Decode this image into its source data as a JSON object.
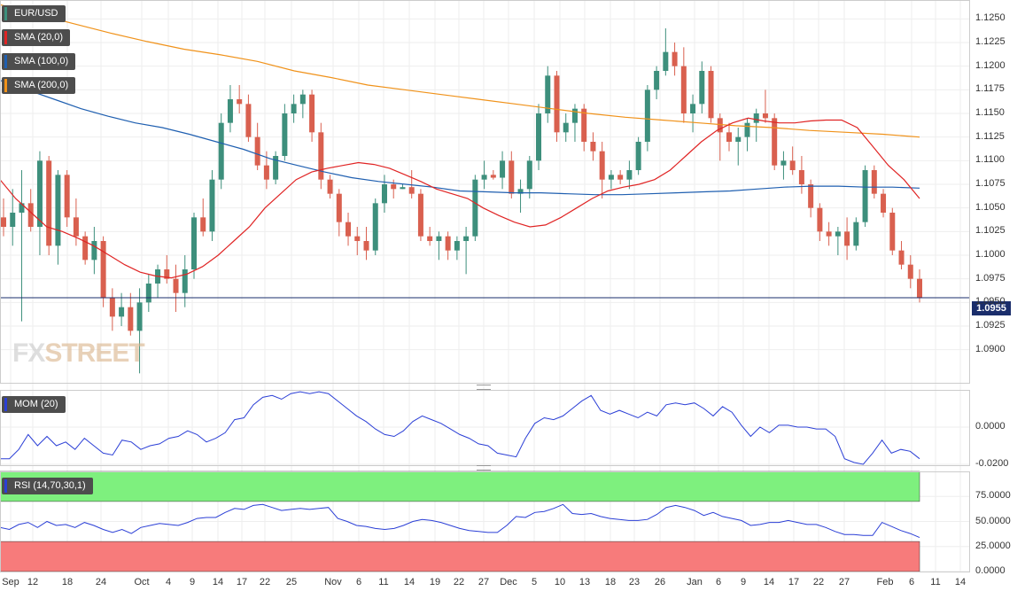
{
  "instrument": "EUR/USD",
  "legend": {
    "symbol": "EUR/USD",
    "sma20": "SMA (20,0)",
    "sma100": "SMA (100,0)",
    "sma200": "SMA (200,0)",
    "mom": "MOM (20)",
    "rsi": "RSI (14,70,30,1)"
  },
  "colors": {
    "up": "#3d8f7c",
    "down": "#d9604f",
    "sma20": "#e02424",
    "sma100": "#1f5fb0",
    "sma200": "#f0921a",
    "mom": "#2b3fd6",
    "rsi": "#2b3fd6",
    "overbought": "#7ef07e",
    "oversold": "#f77b7b",
    "current_line": "#1a2d6b"
  },
  "watermark": {
    "a": "FX",
    "b": "STREET"
  },
  "current_price": "1.0955",
  "chart_data": [
    {
      "type": "candlestick",
      "title": "EUR/USD",
      "ylim": [
        1.0865,
        1.127
      ],
      "yticks": [
        "1.0900",
        "1.0925",
        "1.0950",
        "1.0975",
        "1.1000",
        "1.1025",
        "1.1050",
        "1.1075",
        "1.1100",
        "1.1125",
        "1.1150",
        "1.1175",
        "1.1200",
        "1.1225",
        "1.1250"
      ],
      "xticks": [
        "Sep",
        "12",
        "18",
        "24",
        "Oct",
        "4",
        "9",
        "14",
        "17",
        "22",
        "25",
        "Nov",
        "6",
        "11",
        "14",
        "19",
        "22",
        "27",
        "Dec",
        "5",
        "10",
        "13",
        "18",
        "23",
        "26",
        "Jan",
        "6",
        "9",
        "14",
        "17",
        "22",
        "27",
        "Feb",
        "6",
        "11",
        "14"
      ],
      "current": 1.0955,
      "candles": [
        [
          1.104,
          1.106,
          1.102,
          1.103
        ],
        [
          1.103,
          1.107,
          1.101,
          1.1045
        ],
        [
          1.1045,
          1.109,
          1.093,
          1.1055
        ],
        [
          1.1055,
          1.107,
          1.1025,
          1.103
        ],
        [
          1.103,
          1.111,
          1.1,
          1.11
        ],
        [
          1.11,
          1.1105,
          1.1,
          1.101
        ],
        [
          1.101,
          1.109,
          1.099,
          1.1085
        ],
        [
          1.1085,
          1.109,
          1.103,
          1.104
        ],
        [
          1.104,
          1.106,
          1.101,
          1.102
        ],
        [
          1.102,
          1.1025,
          1.099,
          1.0995
        ],
        [
          1.0995,
          1.103,
          1.098,
          1.1015
        ],
        [
          1.1015,
          1.102,
          1.0945,
          1.0955
        ],
        [
          1.0955,
          1.0965,
          1.092,
          1.0935
        ],
        [
          1.0935,
          1.096,
          1.0925,
          1.0945
        ],
        [
          1.0945,
          1.096,
          1.0915,
          1.092
        ],
        [
          1.092,
          1.0965,
          1.0875,
          1.095
        ],
        [
          1.095,
          1.098,
          1.094,
          1.097
        ],
        [
          1.097,
          1.099,
          1.0955,
          1.0985
        ],
        [
          1.0985,
          1.1,
          1.097,
          1.0975
        ],
        [
          1.0975,
          1.099,
          1.094,
          1.096
        ],
        [
          1.096,
          1.1,
          1.0945,
          1.0985
        ],
        [
          1.0985,
          1.1045,
          1.0975,
          1.104
        ],
        [
          1.104,
          1.106,
          1.102,
          1.1025
        ],
        [
          1.1025,
          1.109,
          1.1015,
          1.108
        ],
        [
          1.108,
          1.115,
          1.107,
          1.114
        ],
        [
          1.114,
          1.118,
          1.113,
          1.1165
        ],
        [
          1.1165,
          1.118,
          1.115,
          1.116
        ],
        [
          1.116,
          1.117,
          1.112,
          1.1125
        ],
        [
          1.1125,
          1.114,
          1.109,
          1.1095
        ],
        [
          1.1095,
          1.111,
          1.107,
          1.108
        ],
        [
          1.108,
          1.111,
          1.1075,
          1.1105
        ],
        [
          1.1105,
          1.116,
          1.11,
          1.115
        ],
        [
          1.115,
          1.117,
          1.114,
          1.116
        ],
        [
          1.116,
          1.1175,
          1.1145,
          1.117
        ],
        [
          1.117,
          1.1175,
          1.112,
          1.113
        ],
        [
          1.113,
          1.114,
          1.107,
          1.108
        ],
        [
          1.108,
          1.1085,
          1.106,
          1.1065
        ],
        [
          1.1065,
          1.107,
          1.102,
          1.1035
        ],
        [
          1.1035,
          1.1045,
          1.101,
          1.102
        ],
        [
          1.102,
          1.103,
          1.1,
          1.1015
        ],
        [
          1.1015,
          1.103,
          1.0995,
          1.1005
        ],
        [
          1.1005,
          1.106,
          1.1,
          1.1055
        ],
        [
          1.1055,
          1.1085,
          1.1045,
          1.1075
        ],
        [
          1.1075,
          1.108,
          1.106,
          1.107
        ],
        [
          1.107,
          1.1075,
          1.107,
          1.1072
        ],
        [
          1.1072,
          1.109,
          1.106,
          1.1065
        ],
        [
          1.1065,
          1.107,
          1.1015,
          1.102
        ],
        [
          1.102,
          1.103,
          1.101,
          1.1015
        ],
        [
          1.1015,
          1.1025,
          1.0995,
          1.102
        ],
        [
          1.102,
          1.1025,
          1.0995,
          1.1005
        ],
        [
          1.1005,
          1.102,
          1.0995,
          1.1015
        ],
        [
          1.1015,
          1.103,
          1.098,
          1.102
        ],
        [
          1.102,
          1.1085,
          1.1015,
          1.108
        ],
        [
          1.108,
          1.11,
          1.107,
          1.1085
        ],
        [
          1.1085,
          1.109,
          1.108,
          1.1082
        ],
        [
          1.1082,
          1.111,
          1.107,
          1.11
        ],
        [
          1.11,
          1.111,
          1.106,
          1.1065
        ],
        [
          1.1065,
          1.108,
          1.1045,
          1.107
        ],
        [
          1.107,
          1.1105,
          1.106,
          1.11
        ],
        [
          1.11,
          1.116,
          1.109,
          1.115
        ],
        [
          1.115,
          1.12,
          1.114,
          1.119
        ],
        [
          1.119,
          1.1195,
          1.112,
          1.113
        ],
        [
          1.113,
          1.115,
          1.112,
          1.114
        ],
        [
          1.114,
          1.116,
          1.112,
          1.1155
        ],
        [
          1.1155,
          1.116,
          1.111,
          1.112
        ],
        [
          1.112,
          1.113,
          1.11,
          1.111
        ],
        [
          1.111,
          1.112,
          1.106,
          1.108
        ],
        [
          1.108,
          1.109,
          1.107,
          1.1085
        ],
        [
          1.1085,
          1.109,
          1.1075,
          1.108
        ],
        [
          1.108,
          1.11,
          1.107,
          1.109
        ],
        [
          1.109,
          1.1125,
          1.1085,
          1.112
        ],
        [
          1.112,
          1.118,
          1.111,
          1.1175
        ],
        [
          1.1175,
          1.12,
          1.1165,
          1.1195
        ],
        [
          1.1195,
          1.124,
          1.119,
          1.1215
        ],
        [
          1.1215,
          1.1225,
          1.119,
          1.12
        ],
        [
          1.12,
          1.122,
          1.114,
          1.115
        ],
        [
          1.115,
          1.117,
          1.113,
          1.116
        ],
        [
          1.116,
          1.1205,
          1.115,
          1.1195
        ],
        [
          1.1195,
          1.12,
          1.114,
          1.1145
        ],
        [
          1.1145,
          1.115,
          1.11,
          1.113
        ],
        [
          1.113,
          1.114,
          1.111,
          1.112
        ],
        [
          1.112,
          1.1135,
          1.1095,
          1.1125
        ],
        [
          1.1125,
          1.1145,
          1.111,
          1.114
        ],
        [
          1.114,
          1.1155,
          1.112,
          1.115
        ],
        [
          1.115,
          1.1175,
          1.114,
          1.1145
        ],
        [
          1.1145,
          1.115,
          1.109,
          1.1095
        ],
        [
          1.1095,
          1.111,
          1.108,
          1.11
        ],
        [
          1.11,
          1.1115,
          1.1085,
          1.109
        ],
        [
          1.109,
          1.1105,
          1.1065,
          1.1075
        ],
        [
          1.1075,
          1.108,
          1.104,
          1.105
        ],
        [
          1.105,
          1.1055,
          1.1015,
          1.1025
        ],
        [
          1.1025,
          1.1035,
          1.101,
          1.102
        ],
        [
          1.102,
          1.103,
          1.1,
          1.1025
        ],
        [
          1.1025,
          1.104,
          1.0995,
          1.101
        ],
        [
          1.101,
          1.104,
          1.1005,
          1.1035
        ],
        [
          1.1035,
          1.1095,
          1.103,
          1.109
        ],
        [
          1.109,
          1.1095,
          1.106,
          1.1065
        ],
        [
          1.1065,
          1.107,
          1.104,
          1.1045
        ],
        [
          1.1045,
          1.105,
          1.1,
          1.1005
        ],
        [
          1.1005,
          1.1015,
          1.0985,
          1.099
        ],
        [
          1.099,
          1.1,
          1.0965,
          1.0975
        ],
        [
          1.0975,
          1.0985,
          1.095,
          1.0955
        ]
      ],
      "sma20": [
        1.108,
        1.106,
        1.1045,
        1.103,
        1.1025,
        1.1018,
        1.101,
        1.1,
        1.099,
        1.0982,
        1.0978,
        1.0976,
        1.098,
        1.0988,
        1.1,
        1.1015,
        1.103,
        1.105,
        1.1065,
        1.108,
        1.1088,
        1.1092,
        1.1095,
        1.1098,
        1.1096,
        1.1092,
        1.1085,
        1.1078,
        1.107,
        1.1065,
        1.106,
        1.105,
        1.1042,
        1.1035,
        1.103,
        1.1032,
        1.104,
        1.105,
        1.106,
        1.1068,
        1.1072,
        1.1075,
        1.108,
        1.109,
        1.1105,
        1.112,
        1.1132,
        1.114,
        1.1145,
        1.1142,
        1.114,
        1.114,
        1.1142,
        1.1143,
        1.1143,
        1.1135,
        1.1115,
        1.1095,
        1.108,
        1.106
      ],
      "sma100": [
        1.1185,
        1.1175,
        1.1165,
        1.1155,
        1.1147,
        1.114,
        1.1135,
        1.1128,
        1.112,
        1.1112,
        1.1102,
        1.1095,
        1.1088,
        1.1082,
        1.1078,
        1.1075,
        1.1072,
        1.1068,
        1.1067,
        1.1066,
        1.1066,
        1.1065,
        1.1064,
        1.1064,
        1.1065,
        1.1066,
        1.1067,
        1.1068,
        1.107,
        1.1072,
        1.1073,
        1.1073,
        1.1072,
        1.1072,
        1.1071
      ],
      "sma200": [
        1.1265,
        1.1255,
        1.1245,
        1.1235,
        1.1226,
        1.1218,
        1.1212,
        1.1205,
        1.1195,
        1.1188,
        1.118,
        1.1175,
        1.117,
        1.1165,
        1.116,
        1.1155,
        1.115,
        1.1146,
        1.1143,
        1.114,
        1.1137,
        1.1135,
        1.1132,
        1.113,
        1.1128,
        1.1125
      ]
    },
    {
      "type": "line",
      "title": "MOM (20)",
      "ylim": [
        -0.0205,
        0.02
      ],
      "yticks": [
        "0.0000",
        "-0.0200"
      ],
      "series": [
        {
          "name": "MOM (20)",
          "values": [
            -0.017,
            -0.017,
            -0.012,
            -0.004,
            -0.01,
            -0.005,
            -0.01,
            -0.008,
            -0.012,
            -0.006,
            -0.01,
            -0.014,
            -0.015,
            -0.007,
            -0.008,
            -0.012,
            -0.01,
            -0.009,
            -0.006,
            -0.005,
            -0.002,
            -0.004,
            -0.008,
            -0.006,
            -0.003,
            0.004,
            0.005,
            0.012,
            0.016,
            0.017,
            0.015,
            0.018,
            0.019,
            0.018,
            0.019,
            0.018,
            0.014,
            0.01,
            0.006,
            0.003,
            -0.001,
            -0.004,
            -0.005,
            -0.002,
            0.003,
            0.006,
            0.004,
            0.002,
            -0.001,
            -0.004,
            -0.006,
            -0.009,
            -0.01,
            -0.014,
            -0.015,
            -0.016,
            -0.006,
            0.002,
            0.005,
            0.004,
            0.006,
            0.01,
            0.014,
            0.017,
            0.009,
            0.007,
            0.009,
            0.007,
            0.005,
            0.008,
            0.006,
            0.012,
            0.013,
            0.012,
            0.013,
            0.01,
            0.006,
            0.011,
            0.008,
            0.001,
            -0.005,
            0.0,
            -0.003,
            0.001,
            0.001,
            0.0,
            0.0,
            -0.001,
            -0.001,
            -0.005,
            -0.017,
            -0.019,
            -0.02,
            -0.014,
            -0.007,
            -0.014,
            -0.012,
            -0.013,
            -0.017
          ]
        }
      ]
    },
    {
      "type": "line",
      "title": "RSI (14,70,30,1)",
      "ylim": [
        0,
        100
      ],
      "yticks": [
        "75.0000",
        "50.0000",
        "25.0000",
        "0.0000"
      ],
      "overbought": 70,
      "oversold": 30,
      "series": [
        {
          "name": "RSI (14,70,30,1)",
          "values": [
            44,
            42,
            47,
            49,
            44,
            50,
            46,
            47,
            44,
            49,
            46,
            42,
            39,
            42,
            38,
            44,
            46,
            48,
            47,
            46,
            49,
            53,
            54,
            54,
            59,
            63,
            62,
            66,
            67,
            64,
            61,
            62,
            63,
            62,
            63,
            64,
            53,
            50,
            46,
            45,
            43,
            42,
            43,
            46,
            50,
            52,
            51,
            49,
            46,
            43,
            41,
            40,
            39,
            39,
            46,
            55,
            54,
            59,
            60,
            63,
            67,
            58,
            57,
            58,
            55,
            53,
            52,
            51,
            51,
            52,
            57,
            64,
            66,
            64,
            61,
            56,
            59,
            55,
            53,
            51,
            46,
            47,
            49,
            49,
            51,
            49,
            47,
            47,
            44,
            40,
            37,
            37,
            36,
            36,
            49,
            45,
            41,
            38,
            34
          ]
        }
      ]
    }
  ]
}
